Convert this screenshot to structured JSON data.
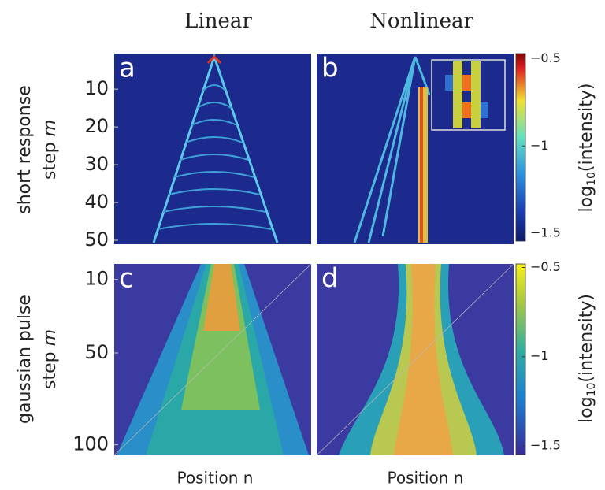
{
  "columns": [
    "Linear",
    "Nonlinear"
  ],
  "rows": [
    {
      "label": "short response",
      "ylabel": "step",
      "var": "m",
      "ylim": [
        1,
        50
      ],
      "yticks": [
        10,
        20,
        30,
        40,
        50
      ],
      "panels": [
        "a",
        "b"
      ],
      "colorbar": {
        "clim": [
          -1.54,
          -0.48
        ],
        "ticks": [
          {
            "value": -0.5,
            "label": "−0.5"
          },
          {
            "value": -1,
            "label": "−1"
          },
          {
            "value": -1.5,
            "label": "−1.5"
          }
        ],
        "label": {
          "base": "log",
          "sub": "10",
          "rest": "(intensity)"
        }
      }
    },
    {
      "label": "gaussian pulse",
      "ylabel": "step",
      "var": "m",
      "ylim": [
        2,
        104
      ],
      "yticks": [
        10,
        50,
        100
      ],
      "panels": [
        "c",
        "d"
      ],
      "colorbar": {
        "clim": [
          -1.54,
          -0.48
        ],
        "ticks": [
          {
            "value": -0.5,
            "label": "−0.5"
          },
          {
            "value": -1,
            "label": "−1"
          },
          {
            "value": -1.5,
            "label": "−1.5"
          }
        ],
        "label": {
          "base": "log",
          "sub": "10",
          "rest": "(intensity)"
        }
      }
    }
  ],
  "xlabels": [
    "Position n",
    "Position n"
  ]
}
